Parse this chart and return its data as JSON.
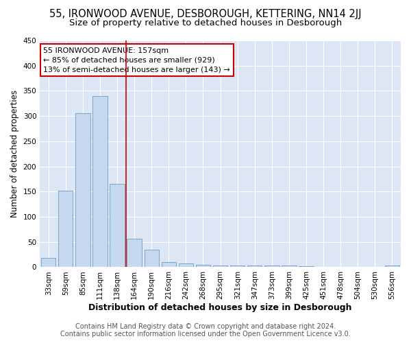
{
  "title": "55, IRONWOOD AVENUE, DESBOROUGH, KETTERING, NN14 2JJ",
  "subtitle": "Size of property relative to detached houses in Desborough",
  "xlabel": "Distribution of detached houses by size in Desborough",
  "ylabel": "Number of detached properties",
  "categories": [
    "33sqm",
    "59sqm",
    "85sqm",
    "111sqm",
    "138sqm",
    "164sqm",
    "190sqm",
    "216sqm",
    "242sqm",
    "268sqm",
    "295sqm",
    "321sqm",
    "347sqm",
    "373sqm",
    "399sqm",
    "425sqm",
    "451sqm",
    "478sqm",
    "504sqm",
    "530sqm",
    "556sqm"
  ],
  "values": [
    18,
    152,
    306,
    340,
    165,
    57,
    35,
    10,
    7,
    5,
    3,
    4,
    4,
    3,
    3,
    2,
    1,
    0,
    0,
    0,
    3
  ],
  "bar_color": "#c5d8ee",
  "bar_edge_color": "#6a9ec5",
  "fig_background_color": "#ffffff",
  "plot_background_color": "#dce6f5",
  "grid_color": "#ffffff",
  "vline_color": "#cc0000",
  "vline_x": 4.5,
  "annotation_box_facecolor": "#ffffff",
  "annotation_border_color": "#cc0000",
  "annotation_text_line1": "55 IRONWOOD AVENUE: 157sqm",
  "annotation_text_line2": "← 85% of detached houses are smaller (929)",
  "annotation_text_line3": "13% of semi-detached houses are larger (143) →",
  "footer_line1": "Contains HM Land Registry data © Crown copyright and database right 2024.",
  "footer_line2": "Contains public sector information licensed under the Open Government Licence v3.0.",
  "ylim": [
    0,
    450
  ],
  "yticks": [
    0,
    50,
    100,
    150,
    200,
    250,
    300,
    350,
    400,
    450
  ],
  "title_fontsize": 10.5,
  "subtitle_fontsize": 9.5,
  "xlabel_fontsize": 9,
  "ylabel_fontsize": 8.5,
  "tick_fontsize": 7.5,
  "annotation_fontsize": 8,
  "footer_fontsize": 7
}
